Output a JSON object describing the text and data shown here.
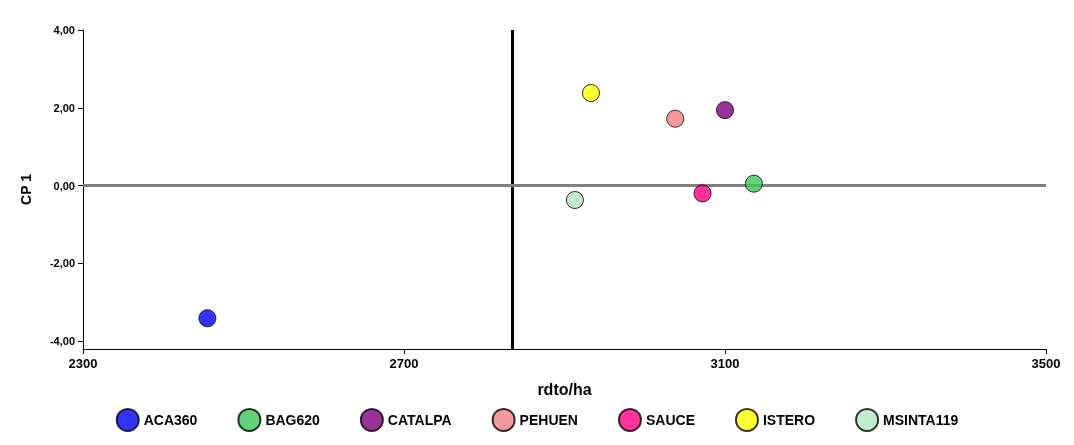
{
  "chart_data": {
    "type": "scatter",
    "xlabel": "rdto/ha",
    "ylabel": "CP 1",
    "xlim": [
      2300,
      3500
    ],
    "xticks": [
      2300,
      2700,
      3100,
      3500
    ],
    "ylim": [
      -4.2,
      4
    ],
    "yticks": [
      {
        "value": -4,
        "label": "-4,00"
      },
      {
        "value": -2,
        "label": "-2,00"
      },
      {
        "value": 0,
        "label": "0,00"
      },
      {
        "value": 2,
        "label": "2,00"
      },
      {
        "value": 4,
        "label": "4,00"
      }
    ],
    "series": [
      {
        "name": "ACA360",
        "color": "#0000ff",
        "x": [
          2455
        ],
        "values": [
          -3.41
        ]
      },
      {
        "name": "BAG620",
        "color": "#3cc85a",
        "x": [
          3136
        ],
        "values": [
          0.05
        ]
      },
      {
        "name": "CATALPA",
        "color": "#800080",
        "x": [
          3100
        ],
        "values": [
          1.94
        ]
      },
      {
        "name": "PEHUEN",
        "color": "#f08080",
        "x": [
          3038
        ],
        "values": [
          1.72
        ]
      },
      {
        "name": "SAUCE",
        "color": "#ff007f",
        "x": [
          3072
        ],
        "values": [
          -0.2
        ]
      },
      {
        "name": "ISTERO",
        "color": "#ffff00",
        "x": [
          2933
        ],
        "values": [
          2.38
        ]
      },
      {
        "name": "MSINTA119",
        "color": "#b4e6c0",
        "x": [
          2913
        ],
        "values": [
          -0.37
        ]
      }
    ],
    "ref_lines": [
      {
        "axis": "x",
        "value": 2835,
        "color": "#000000"
      },
      {
        "axis": "y",
        "value": 0,
        "color": "#808080"
      }
    ],
    "marker": "circle",
    "grid": false,
    "legend": "bottom"
  }
}
